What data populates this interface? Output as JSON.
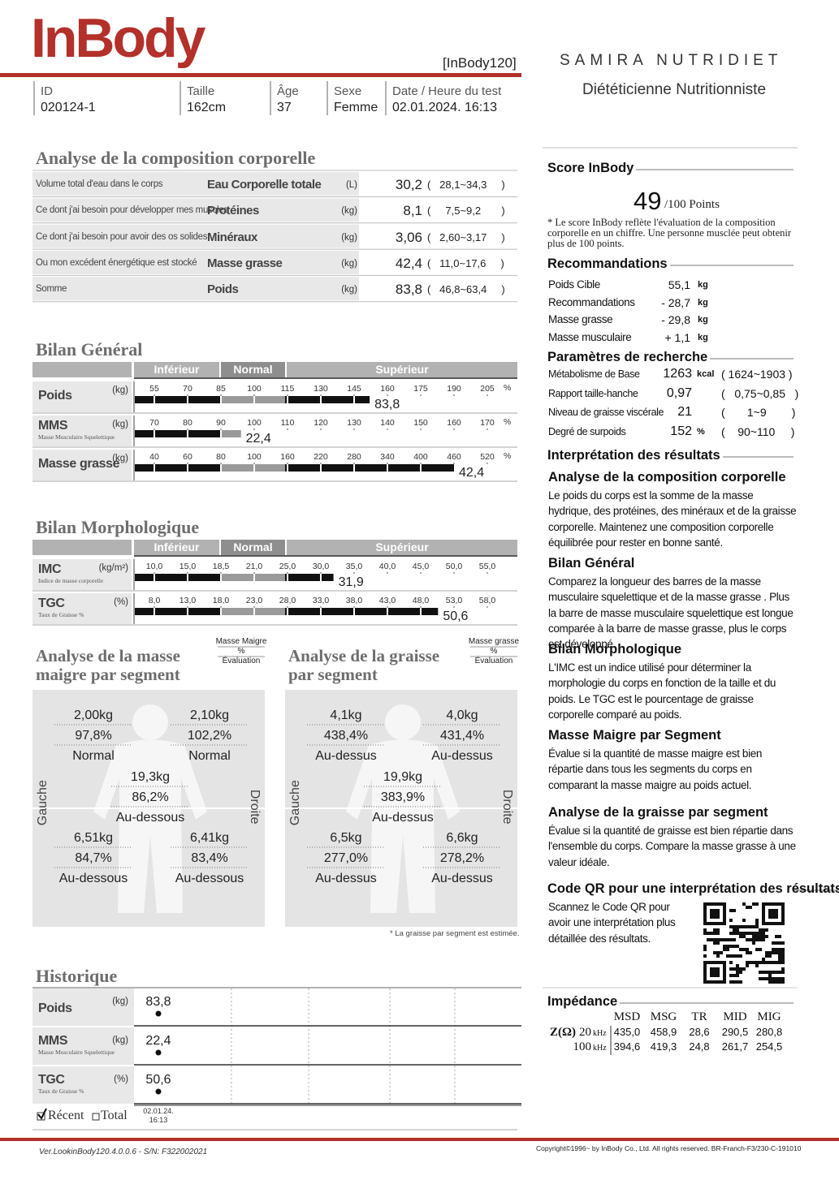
{
  "header": {
    "logo": "InBody",
    "model": "[InBody120]",
    "clinic": "SAMIRA NUTRIDIET",
    "clinic_subtitle": "Diététicienne Nutritionniste"
  },
  "info": [
    {
      "label": "ID",
      "value": "020124-1"
    },
    {
      "label": "Taille",
      "value": "162cm"
    },
    {
      "label": "Âge",
      "value": "37"
    },
    {
      "label": "Sexe",
      "value": "Femme"
    },
    {
      "label": "Date / Heure du test",
      "value": "02.01.2024. 16:13"
    }
  ],
  "composition": {
    "title": "Analyse de la composition corporelle",
    "rows": [
      {
        "desc": "Volume total d'eau dans le corps",
        "name": "Eau Corporelle totale",
        "unit": "(L)",
        "value": "30,2",
        "range": "(   28,1~34,3     )"
      },
      {
        "desc": "Ce dont j'ai besoin pour développer mes muscles",
        "name": "Protéines",
        "unit": "(kg)",
        "value": "8,1",
        "range": "(     7,5~9,2       )"
      },
      {
        "desc": "Ce dont j'ai besoin pour avoir des os solides",
        "name": "Minéraux",
        "unit": "(kg)",
        "value": "3,06",
        "range": "(   2,60~3,17     )"
      },
      {
        "desc": "Ou mon excédent énergétique est stocké",
        "name": "Masse grasse",
        "unit": "(kg)",
        "value": "42,4",
        "range": "(   11,0~17,6     )"
      },
      {
        "desc": "Somme",
        "name": "Poids",
        "unit": "(kg)",
        "value": "83,8",
        "range": "(   46,8~63,4     )"
      }
    ]
  },
  "bilan_general": {
    "title": "Bilan Général",
    "zones": [
      "Inférieur",
      "Normal",
      "Supérieur"
    ],
    "rows": [
      {
        "name": "Poids",
        "unit": "(kg)",
        "pct_symbol": "%",
        "ticks": [
          55,
          70,
          85,
          100,
          115,
          130,
          145,
          160,
          175,
          190,
          205
        ],
        "bar": 152,
        "value": 83.8,
        "value_label": "83,8"
      },
      {
        "name": "MMS",
        "sub": "Masse Musculaire Squelettique",
        "unit": "(kg)",
        "pct_symbol": "%",
        "ticks": [
          70,
          80,
          90,
          100,
          110,
          120,
          130,
          140,
          150,
          160,
          170
        ],
        "bar": 96,
        "value": 22.4,
        "value_label": "22,4"
      },
      {
        "name": "Masse grasse",
        "unit": "(kg)",
        "pct_symbol": "%",
        "ticks": [
          40,
          60,
          80,
          100,
          160,
          220,
          280,
          340,
          400,
          460,
          520
        ],
        "bar": 460,
        "value": 42.4,
        "value_label": "42,4"
      }
    ]
  },
  "bilan_morpho": {
    "title": "Bilan Morphologique",
    "zones": [
      "Inférieur",
      "Normal",
      "Supérieur"
    ],
    "rows": [
      {
        "name": "IMC",
        "sub": "Indice de masse corporelle",
        "unit": "(kg/m²)",
        "ticks": [
          {
            "value": 10,
            "label": "10,0"
          },
          {
            "value": 15,
            "label": "15,0"
          },
          {
            "value": 18.5,
            "label": "18,5"
          },
          {
            "value": 21,
            "label": "21,0"
          },
          {
            "value": 25,
            "label": "25,0"
          },
          {
            "value": 30,
            "label": "30,0"
          },
          {
            "value": 35,
            "label": "35,0"
          },
          {
            "value": 40,
            "label": "40,0"
          },
          {
            "value": 45,
            "label": "45,0"
          },
          {
            "value": 50,
            "label": "50,0"
          },
          {
            "value": 55,
            "label": "55,0"
          }
        ],
        "value": 31.9,
        "value_label": "31,9"
      },
      {
        "name": "TGC",
        "sub": "Taux de Graisse %",
        "unit": "(%)",
        "ticks": [
          {
            "value": 8,
            "label": "8,0"
          },
          {
            "value": 13,
            "label": "13,0"
          },
          {
            "value": 18,
            "label": "18,0"
          },
          {
            "value": 23,
            "label": "23,0"
          },
          {
            "value": 28,
            "label": "28,0"
          },
          {
            "value": 33,
            "label": "33,0"
          },
          {
            "value": 38,
            "label": "38,0"
          },
          {
            "value": 43,
            "label": "43,0"
          },
          {
            "value": 48,
            "label": "48,0"
          },
          {
            "value": 53,
            "label": "53,0"
          },
          {
            "value": 58,
            "label": "58,0"
          }
        ],
        "value": 50.6,
        "value_label": "50,6"
      }
    ]
  },
  "segment_lean": {
    "title": "Analyse de la masse maigre par segment",
    "legend": {
      "mass": "Masse Maigre",
      "pct": "%",
      "eval": "Évaluation"
    },
    "left": "Gauche",
    "right": "Droite",
    "cells": [
      {
        "mass": "2,00kg",
        "pct": "97,8%",
        "eval": "Normal"
      },
      {
        "mass": "2,10kg",
        "pct": "102,2%",
        "eval": "Normal"
      },
      {
        "mass": "19,3kg",
        "pct": "86,2%",
        "eval": "Au-dessous"
      },
      {
        "mass": "6,51kg",
        "pct": "84,7%",
        "eval": "Au-dessous"
      },
      {
        "mass": "6,41kg",
        "pct": "83,4%",
        "eval": "Au-dessous"
      }
    ]
  },
  "segment_fat": {
    "title": "Analyse de la graisse par segment",
    "legend": {
      "mass": "Masse grasse",
      "pct": "%",
      "eval": "Évaluation"
    },
    "left": "Gauche",
    "right": "Droite",
    "cells": [
      {
        "mass": "4,1kg",
        "pct": "438,4%",
        "eval": "Au-dessus"
      },
      {
        "mass": "4,0kg",
        "pct": "431,4%",
        "eval": "Au-dessus"
      },
      {
        "mass": "19,9kg",
        "pct": "383,9%",
        "eval": "Au-dessus"
      },
      {
        "mass": "6,5kg",
        "pct": "277,0%",
        "eval": "Au-dessus"
      },
      {
        "mass": "6,6kg",
        "pct": "278,2%",
        "eval": "Au-dessus"
      }
    ],
    "note": "* La graisse par segment est estimée."
  },
  "history": {
    "title": "Historique",
    "rows": [
      {
        "name": "Poids",
        "unit": "(kg)",
        "value": "83,8"
      },
      {
        "name": "MMS",
        "sub": "Masse Musculaire Squelettique",
        "unit": "(kg)",
        "value": "22,4"
      },
      {
        "name": "TGC",
        "sub": "Taux de Graisse %",
        "unit": "(%)",
        "value": "50,6"
      }
    ],
    "recent": "Récent",
    "total": "Total",
    "date": "02.01.24.",
    "time": "16:13"
  },
  "score": {
    "title": "Score InBody",
    "value": "49",
    "max": "/100 Points",
    "note": "* Le score InBody reflète l'évaluation de la composition corporelle en un chiffre. Une personne musclée peut obtenir plus de 100 points."
  },
  "recommendations": {
    "title": "Recommandations",
    "rows": [
      {
        "label": "Poids Cible",
        "value": "55,1",
        "unit": "kg"
      },
      {
        "label": "Recommandations",
        "value": "- 28,7",
        "unit": "kg"
      },
      {
        "label": "Masse grasse",
        "value": "- 29,8",
        "unit": "kg"
      },
      {
        "label": "Masse musculaire",
        "value": "+ 1,1",
        "unit": "kg"
      }
    ]
  },
  "research": {
    "title": "Paramètres de recherche",
    "rows": [
      {
        "label": "Métabolisme de Base",
        "value": "1263",
        "unit": "kcal",
        "range": "( 1624~1903 )"
      },
      {
        "label": "Rapport taille-hanche",
        "value": "0,97",
        "range": "(   0,75~0,85   )"
      },
      {
        "label": "Niveau de graisse viscérale",
        "value": "21",
        "range": "(       1~9        )"
      },
      {
        "label": "Degré de surpoids",
        "value": "152",
        "unit": "%",
        "range": "(    90~110     )"
      }
    ]
  },
  "interpretation": {
    "title": "Interprétation des résultats",
    "sections": [
      {
        "title": "Analyse de la composition corporelle",
        "text": "Le poids du corps est la somme de la masse hydrique, des protéines, des minéraux et de la graisse corporelle. Maintenez une composition corporelle équilibrée pour rester en bonne santé."
      },
      {
        "title": "Bilan Général",
        "text": "Comparez la longueur des barres de la masse musculaire squelettique et de la masse grasse . Plus la barre de masse musculaire squelettique est longue comparée à la barre de masse grasse, plus le corps est développé."
      },
      {
        "title": "Bilan Morphologique",
        "text": "L'IMC est un indice utilisé pour déterminer la morphologie du corps en fonction de la taille et du poids. Le TGC est le pourcentage de graisse corporelle comparé au poids."
      },
      {
        "title": "Masse Maigre par Segment",
        "text": "Évalue si la quantité de masse maigre est bien répartie dans tous les segments du corps en comparant la masse maigre au poids actuel."
      },
      {
        "title": "Analyse de la graisse par segment",
        "text": "Évalue si la quantité de graisse est bien répartie dans l'ensemble du corps. Compare la masse grasse à une valeur idéale."
      }
    ]
  },
  "qr": {
    "title": "Code QR pour une interprétation des résultats",
    "text": "Scannez le Code QR pour avoir une interprétation plus détaillée des résultats."
  },
  "impedance": {
    "title": "Impédance",
    "columns": [
      "MSD",
      "MSG",
      "TR",
      "MID",
      "MIG"
    ],
    "z_label": "Z(Ω)",
    "rows": [
      {
        "freq": "20",
        "unit": "kHz",
        "values": [
          "435,0",
          "458,9",
          "28,6",
          "290,5",
          "280,8"
        ]
      },
      {
        "freq": "100",
        "unit": "kHz",
        "values": [
          "394,6",
          "419,3",
          "24,8",
          "261,7",
          "254,5"
        ]
      }
    ]
  },
  "footer": {
    "version": "Ver.LookinBody120.4.0.0.6 - S/N: F322002021",
    "copyright": "Copyright©1996~ by InBody Co., Ltd. All rights reserved. BR-Franch-F3/230-C-191010"
  }
}
